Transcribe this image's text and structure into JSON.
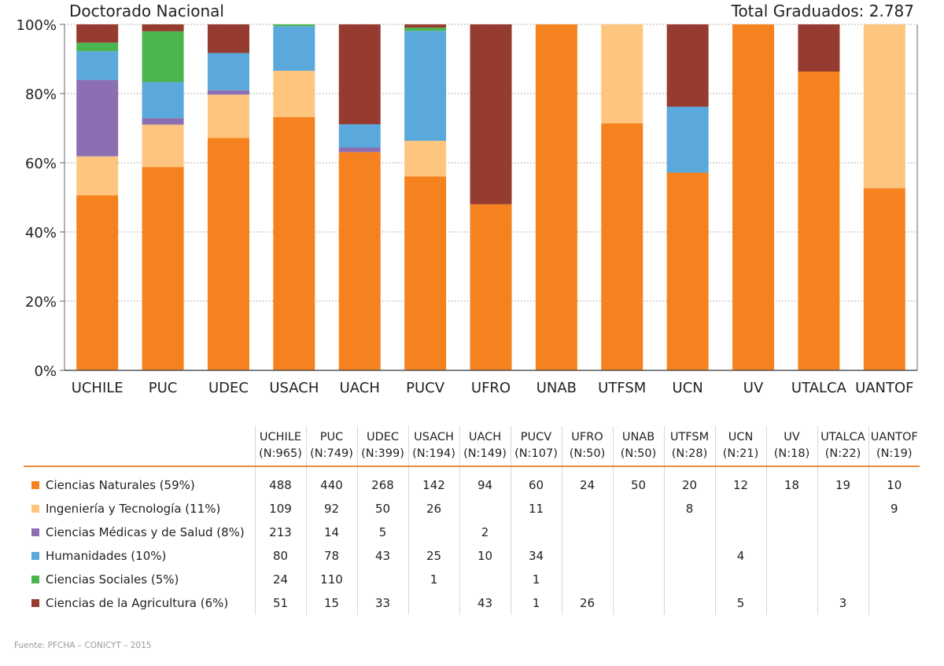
{
  "chart_data": {
    "type": "bar",
    "stacked": "percent",
    "title": "Doctorado Nacional",
    "total_label": "Total Graduados: 2.787",
    "yticks": [
      "0%",
      "20%",
      "40%",
      "60%",
      "80%",
      "100%"
    ],
    "ylim": [
      0,
      100
    ],
    "grid": "horizontal-dotted",
    "categories": [
      "UCHILE",
      "PUC",
      "UDEC",
      "USACH",
      "UACH",
      "PUCV",
      "UFRO",
      "UNAB",
      "UTFSM",
      "UCN",
      "UV",
      "UTALCA",
      "UANTOF"
    ],
    "category_n": [
      "(N:965)",
      "(N:749)",
      "(N:399)",
      "(N:194)",
      "(N:149)",
      "(N:107)",
      "(N:50)",
      "(N:50)",
      "(N:28)",
      "(N:21)",
      "(N:18)",
      "(N:22)",
      "(N:19)"
    ],
    "series": [
      {
        "name": "Ciencias Naturales (59%)",
        "color": "#f5821f",
        "values": [
          488,
          440,
          268,
          142,
          94,
          60,
          24,
          50,
          20,
          12,
          18,
          19,
          10
        ],
        "labels": [
          "488",
          "440",
          "268",
          "142",
          "94",
          "60",
          "24",
          "50",
          "20",
          "12",
          "18",
          "19",
          "10"
        ]
      },
      {
        "name": "Ingeniería y Tecnología (11%)",
        "color": "#fdc57e",
        "values": [
          109,
          92,
          50,
          26,
          0,
          11,
          0,
          0,
          8,
          0,
          0,
          0,
          9
        ],
        "labels": [
          "109",
          "92",
          "50",
          "26",
          "",
          "11",
          "",
          "",
          "8",
          "",
          "",
          "",
          "9"
        ]
      },
      {
        "name": "Ciencias Médicas y de Salud (8%)",
        "color": "#8c6fb3",
        "values": [
          213,
          14,
          5,
          0,
          2,
          0,
          0,
          0,
          0,
          0,
          0,
          0,
          0
        ],
        "labels": [
          "213",
          "14",
          "5",
          "",
          "2",
          "",
          "",
          "",
          "",
          "",
          "",
          "",
          ""
        ]
      },
      {
        "name": "Humanidades (10%)",
        "color": "#5aa8dc",
        "values": [
          80,
          78,
          43,
          25,
          10,
          34,
          0,
          0,
          0,
          4,
          0,
          0,
          0
        ],
        "labels": [
          "80",
          "78",
          "43",
          "25",
          "10",
          "34",
          "",
          "",
          "",
          "4",
          "",
          "",
          ""
        ]
      },
      {
        "name": "Ciencias Sociales (5%)",
        "color": "#4ab54e",
        "values": [
          24,
          110,
          0,
          1,
          0,
          1,
          0,
          0,
          0,
          0,
          0,
          0,
          0
        ],
        "labels": [
          "24",
          "110",
          "",
          "1",
          "",
          "1",
          "",
          "",
          "",
          "",
          "",
          "",
          ""
        ]
      },
      {
        "name": "Ciencias de la Agricultura (6%)",
        "color": "#953b30",
        "values": [
          51,
          15,
          33,
          0,
          43,
          1,
          26,
          0,
          0,
          5,
          0,
          3,
          0
        ],
        "labels": [
          "51",
          "15",
          "33",
          "",
          "43",
          "1",
          "26",
          "",
          "",
          "5",
          "",
          "3",
          ""
        ]
      }
    ],
    "source": "Fuente: PFCHA – CONICYT – 2015"
  }
}
